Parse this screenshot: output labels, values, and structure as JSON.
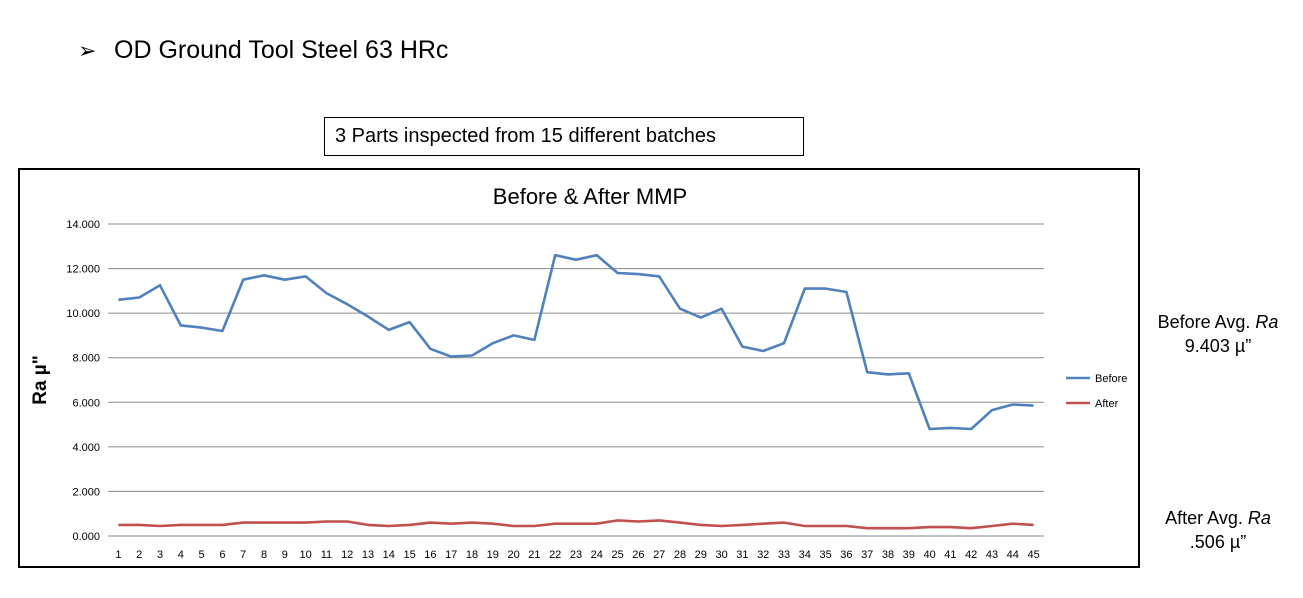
{
  "slide": {
    "bullet_glyph": "➢",
    "title": "OD Ground Tool Steel 63 HRc",
    "caption": "3 Parts inspected from 15 different batches"
  },
  "notes": {
    "before_label": "Before Avg.",
    "before_ra": "Ra",
    "before_value": "9.403 µ”",
    "after_label": "After Avg.",
    "after_ra": "Ra",
    "after_value": ".506 µ”"
  },
  "chart_data": {
    "type": "line",
    "title": "Before & After MMP",
    "xlabel": "",
    "ylabel": "Ra µ\"",
    "ylim": [
      0,
      14
    ],
    "yticks": [
      "0.000",
      "2.000",
      "4.000",
      "6.000",
      "8.000",
      "10.000",
      "12.000",
      "14.000"
    ],
    "grid": true,
    "legend_position": "right",
    "categories": [
      "1",
      "2",
      "3",
      "4",
      "5",
      "6",
      "7",
      "8",
      "9",
      "10",
      "11",
      "12",
      "13",
      "14",
      "15",
      "16",
      "17",
      "18",
      "19",
      "20",
      "21",
      "22",
      "23",
      "24",
      "25",
      "26",
      "27",
      "28",
      "29",
      "30",
      "31",
      "32",
      "33",
      "34",
      "35",
      "36",
      "37",
      "38",
      "39",
      "40",
      "41",
      "42",
      "43",
      "44",
      "45"
    ],
    "series": [
      {
        "name": "Before",
        "color": "#4F81BD",
        "values": [
          10.6,
          10.7,
          11.25,
          9.45,
          9.35,
          9.2,
          11.5,
          11.7,
          11.5,
          11.65,
          10.9,
          10.4,
          9.85,
          9.25,
          9.6,
          8.4,
          8.05,
          8.1,
          8.65,
          9.0,
          8.8,
          12.6,
          12.4,
          12.6,
          11.8,
          11.75,
          11.65,
          10.2,
          9.8,
          10.2,
          8.5,
          8.3,
          8.65,
          11.1,
          11.1,
          10.95,
          7.35,
          7.25,
          7.3,
          4.8,
          4.85,
          4.8,
          5.65,
          5.9,
          5.85
        ]
      },
      {
        "name": "After",
        "color": "#C0504D",
        "values": [
          0.5,
          0.5,
          0.45,
          0.5,
          0.5,
          0.5,
          0.6,
          0.6,
          0.6,
          0.6,
          0.65,
          0.65,
          0.5,
          0.45,
          0.5,
          0.6,
          0.55,
          0.6,
          0.55,
          0.45,
          0.45,
          0.55,
          0.55,
          0.55,
          0.7,
          0.65,
          0.7,
          0.6,
          0.5,
          0.45,
          0.5,
          0.55,
          0.6,
          0.45,
          0.45,
          0.45,
          0.35,
          0.35,
          0.35,
          0.4,
          0.4,
          0.35,
          0.45,
          0.55,
          0.5
        ]
      }
    ]
  }
}
